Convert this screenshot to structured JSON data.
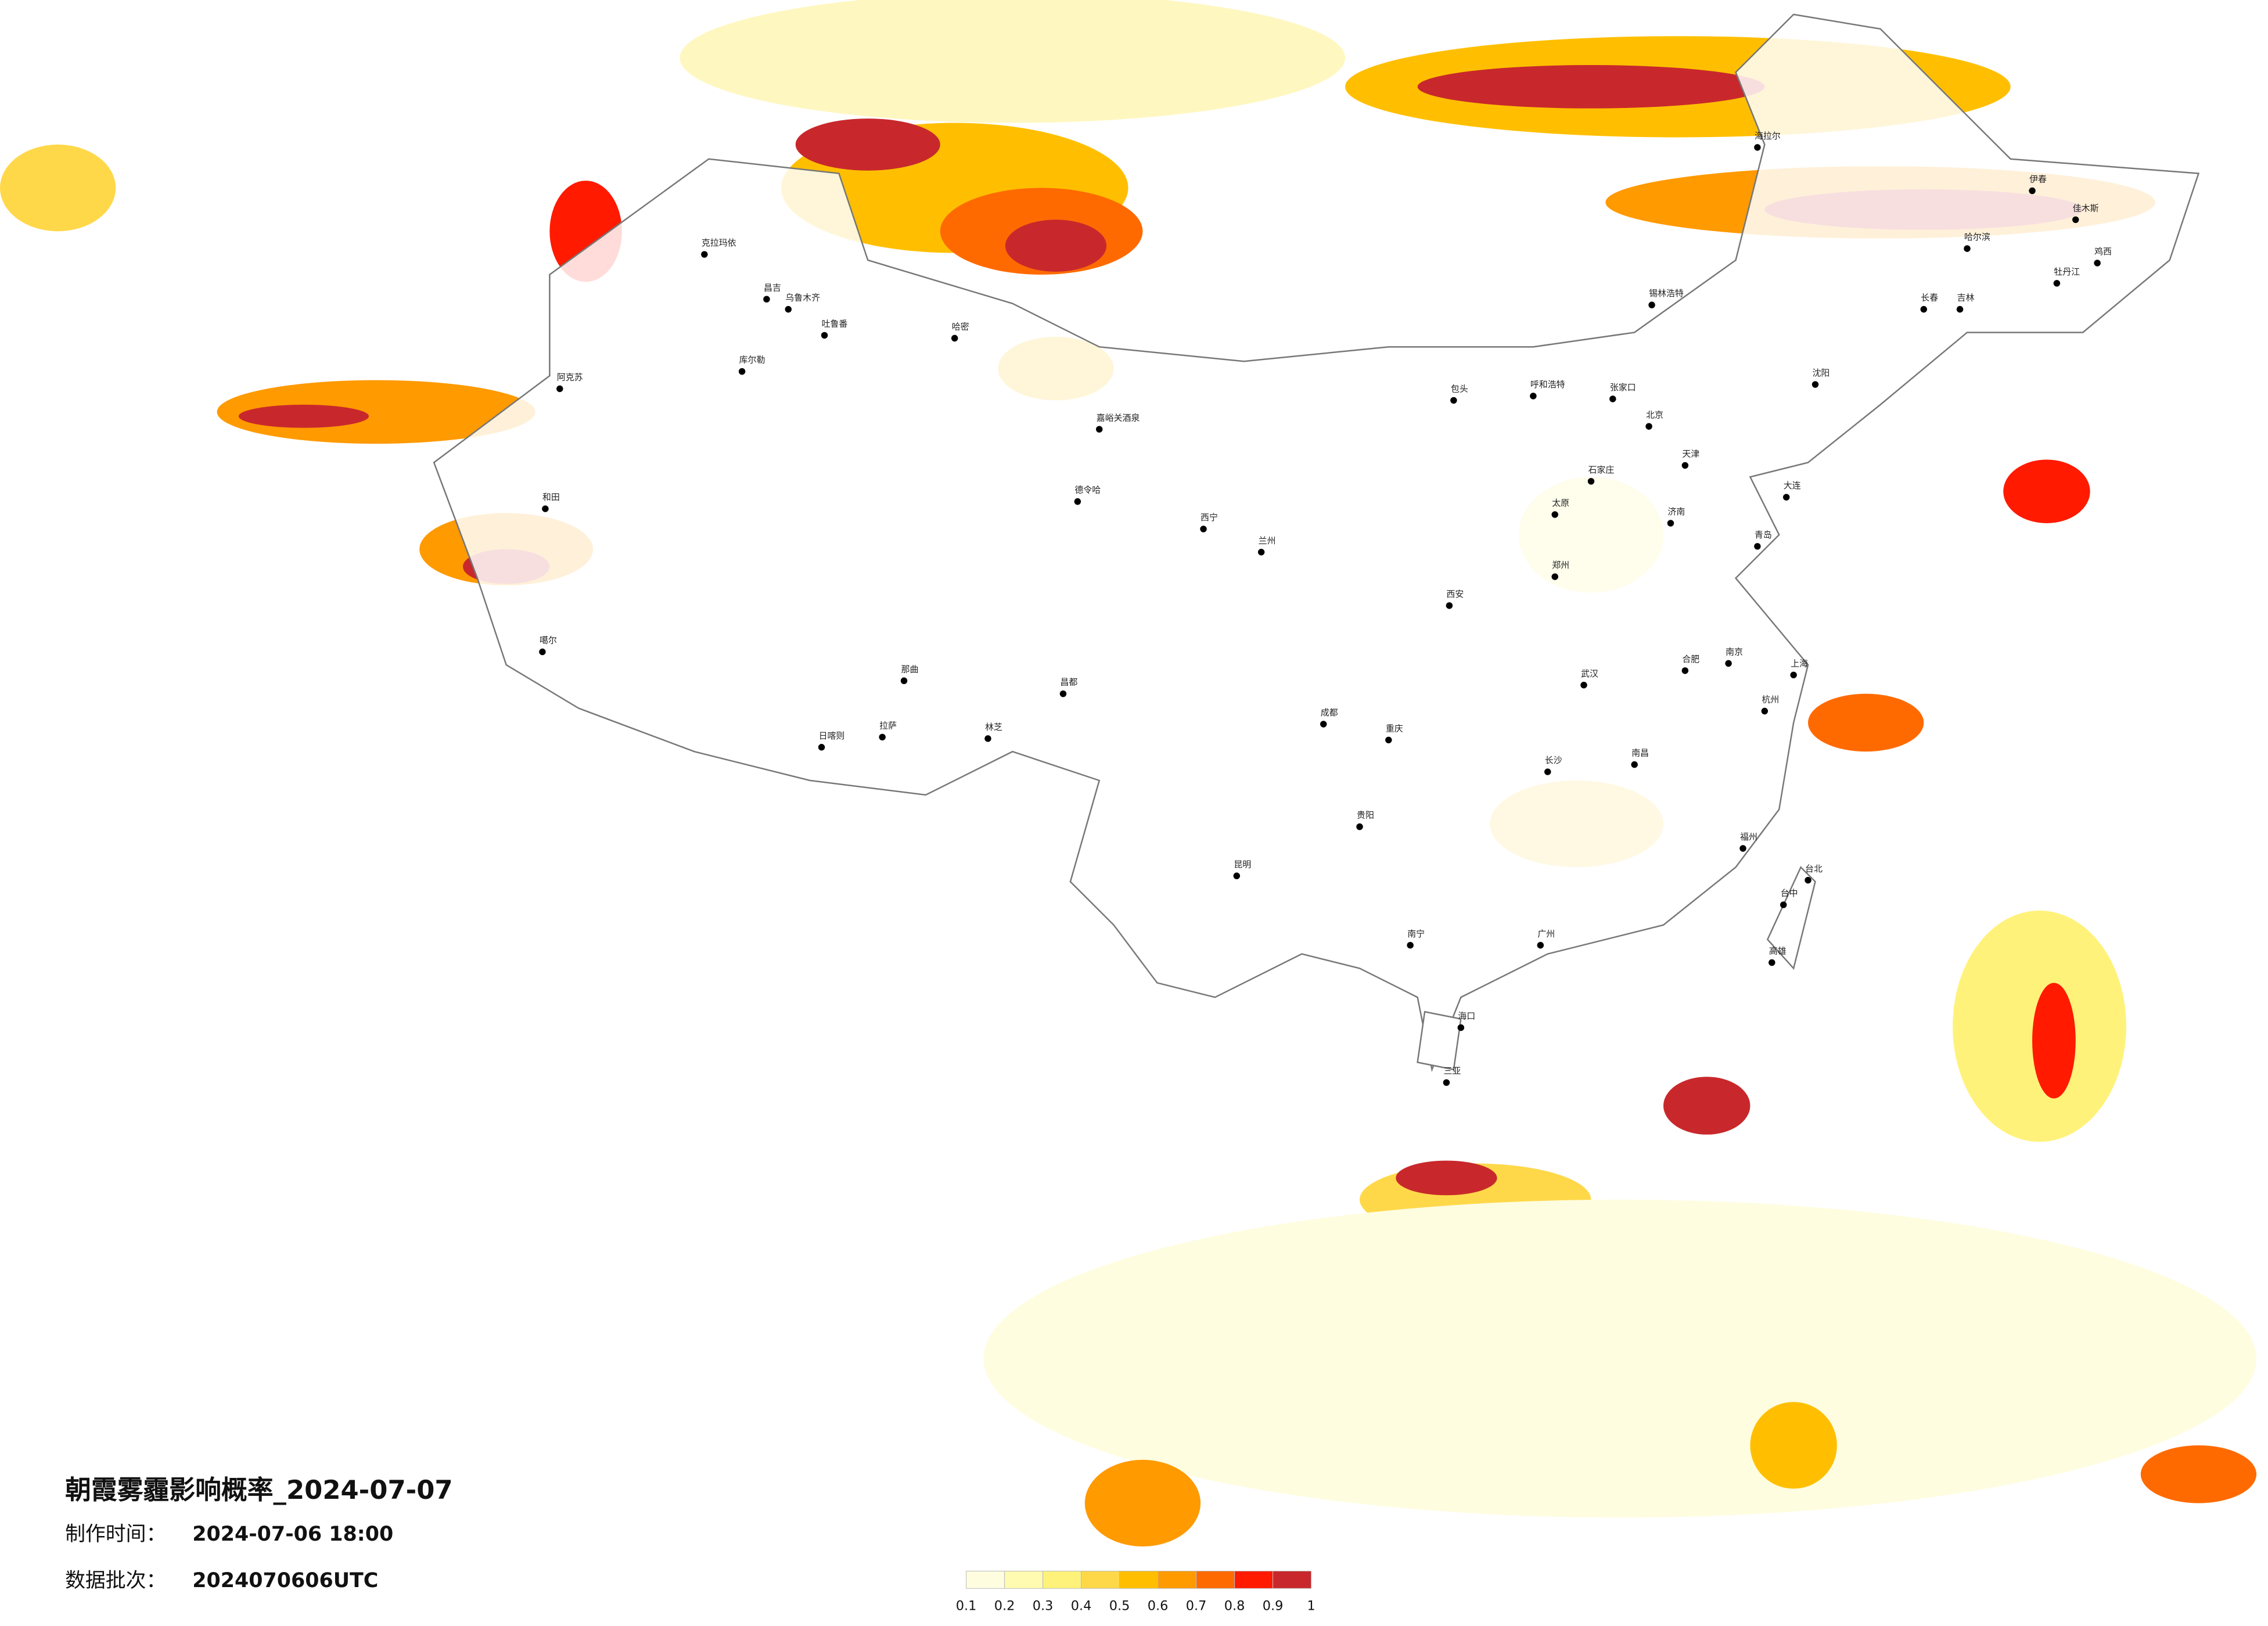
{
  "header": {
    "title": "朝霞雾霾影响概率_2024-07-07",
    "made_label": "制作时间：",
    "made_time": "2024-07-06 18:00",
    "batch_label": "数据批次：",
    "batch": "2024070606UTC"
  },
  "legend": {
    "colors": [
      "#fffde0",
      "#fffbb0",
      "#fff27a",
      "#ffd84a",
      "#ffbf00",
      "#ff9a00",
      "#ff6a00",
      "#ff1a00",
      "#c8282c"
    ],
    "ticks": [
      0.1,
      0.2,
      0.3,
      0.4,
      0.5,
      0.6,
      0.7,
      0.8,
      0.9,
      1
    ]
  },
  "cities": [
    "克拉玛依",
    "昌吉",
    "乌鲁木齐",
    "吐鲁番",
    "哈密",
    "库尔勒",
    "阿克苏",
    "和田",
    "噶尔",
    "那曲",
    "日喀则",
    "拉萨",
    "林芝",
    "昌都",
    "嘉峪关酒泉",
    "德令哈",
    "西宁",
    "兰州",
    "呼和浩特",
    "包头",
    "张家口",
    "北京",
    "天津",
    "石家庄",
    "太原",
    "济南",
    "郑州",
    "西安",
    "成都",
    "重庆",
    "贵阳",
    "昆明",
    "南宁",
    "海口",
    "三亚",
    "广州",
    "福州",
    "台北",
    "台中",
    "高雄",
    "上海",
    "南京",
    "杭州",
    "武汉",
    "长沙",
    "南昌",
    "合肥",
    "沈阳",
    "长春",
    "哈尔滨",
    "吉林",
    "大连",
    "青岛",
    "锡林浩特",
    "海拉尔",
    "伊春",
    "佳木斯",
    "牡丹江",
    "鸡西"
  ]
}
